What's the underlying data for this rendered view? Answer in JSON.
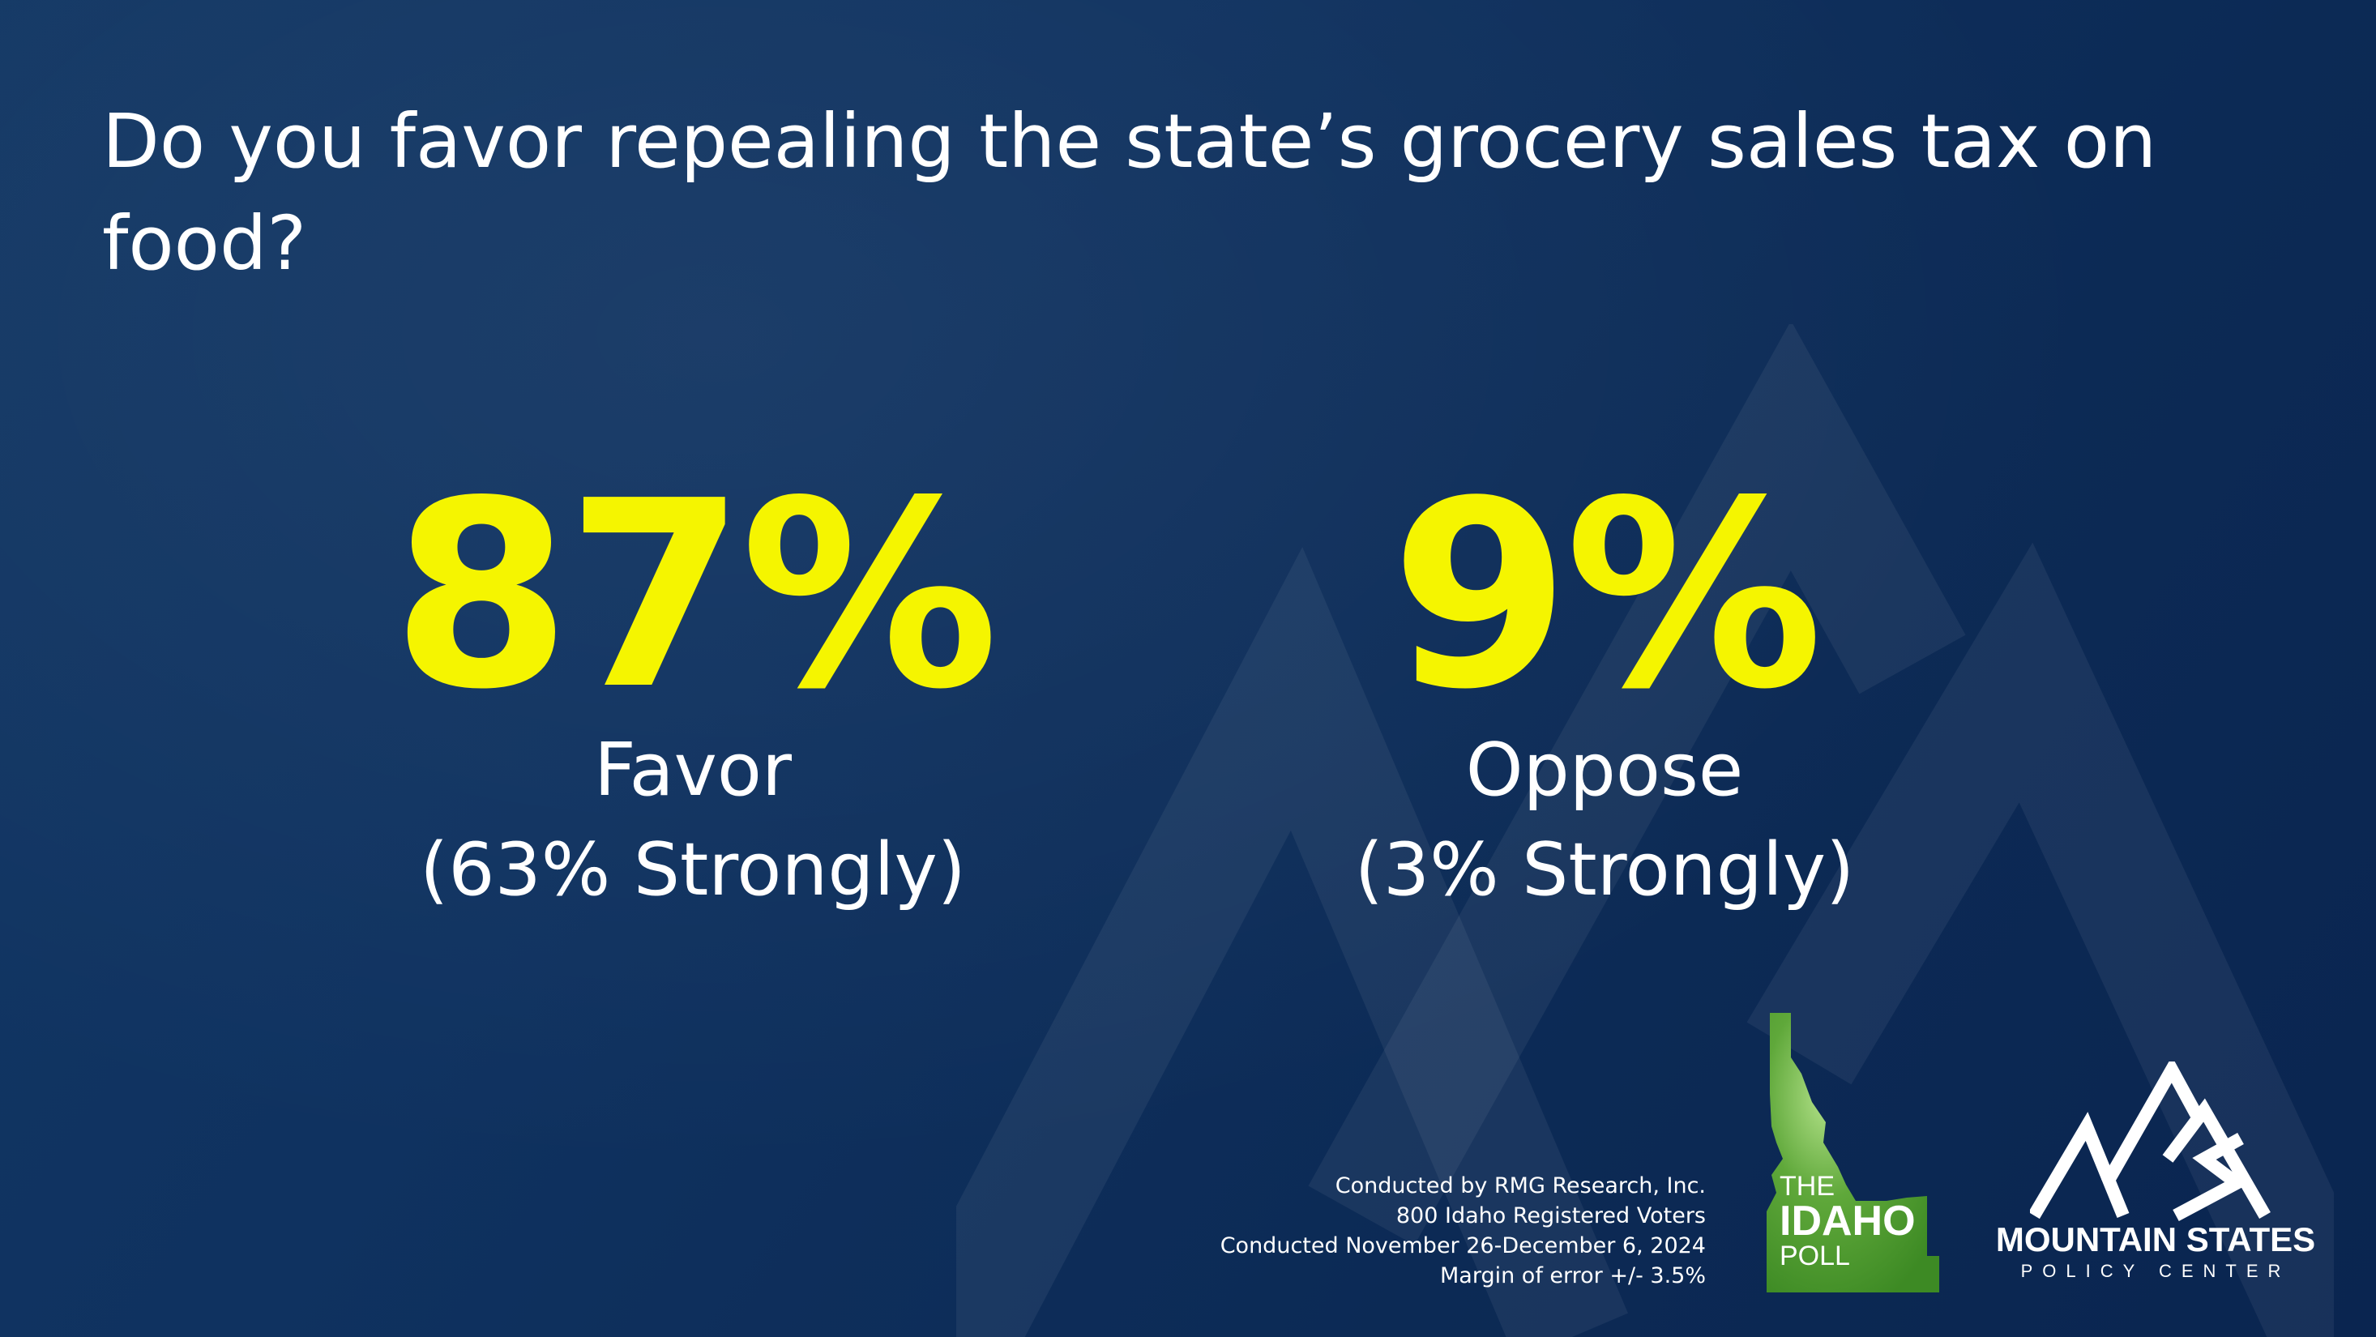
{
  "question": "Do you favor repealing the state’s grocery sales tax on food?",
  "results": [
    {
      "value": "87%",
      "label": "Favor",
      "sub": "(63% Strongly)"
    },
    {
      "value": "9%",
      "label": "Oppose",
      "sub": "(3% Strongly)"
    }
  ],
  "methodology": [
    "Conducted by RMG Research, Inc.",
    "800 Idaho Registered Voters",
    "Conducted November 26-December 6, 2024",
    "Margin of error +/- 3.5%"
  ],
  "idaho_poll": {
    "line1": "THE",
    "line2": "IDAHO",
    "line3": "POLL"
  },
  "mountain_states": {
    "name": "MOUNTAIN STATES",
    "tagline": "POLICY CENTER"
  },
  "colors": {
    "background": "#0f3260",
    "highlight": "#f5f500",
    "text": "#ffffff",
    "idaho_green": "#4e9a2c"
  },
  "icons": [
    "mountain-watermark-icon",
    "idaho-state-icon",
    "mountain-states-mark-icon"
  ]
}
